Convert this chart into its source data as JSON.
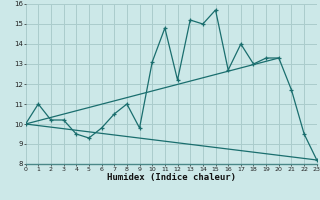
{
  "xlabel": "Humidex (Indice chaleur)",
  "xlim": [
    0,
    23
  ],
  "ylim": [
    8,
    16
  ],
  "yticks": [
    8,
    9,
    10,
    11,
    12,
    13,
    14,
    15,
    16
  ],
  "xticks": [
    0,
    1,
    2,
    3,
    4,
    5,
    6,
    7,
    8,
    9,
    10,
    11,
    12,
    13,
    14,
    15,
    16,
    17,
    18,
    19,
    20,
    21,
    22,
    23
  ],
  "bg_color": "#cce8e8",
  "grid_color": "#aacccc",
  "line_color": "#1a6e6e",
  "line1_x": [
    0,
    1,
    2,
    3,
    4,
    5,
    6,
    7,
    8,
    9,
    10,
    11,
    12,
    13,
    14,
    15,
    16,
    17,
    18,
    19,
    20,
    21,
    22,
    23
  ],
  "line1_y": [
    10.0,
    11.0,
    10.2,
    10.2,
    9.5,
    9.3,
    9.8,
    10.5,
    11.0,
    9.8,
    13.1,
    14.8,
    12.2,
    15.2,
    15.0,
    15.7,
    12.7,
    14.0,
    13.0,
    13.3,
    13.3,
    11.7,
    9.5,
    8.2
  ],
  "line2_x": [
    0,
    20
  ],
  "line2_y": [
    10.0,
    13.3
  ],
  "line3_x": [
    0,
    23
  ],
  "line3_y": [
    10.0,
    8.2
  ],
  "axis_bottom_color": "#4a8888",
  "tick_fontsize": 5,
  "xlabel_fontsize": 6.5
}
